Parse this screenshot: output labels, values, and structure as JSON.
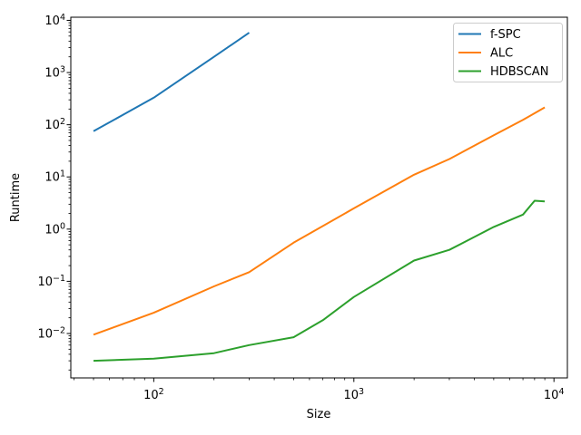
{
  "chart_data": {
    "type": "line",
    "title": "",
    "xlabel": "Size",
    "ylabel": "Runtime",
    "x_scale": "log",
    "y_scale": "log",
    "xlim": [
      38.5,
      11670
    ],
    "ylim": [
      0.00141,
      11480
    ],
    "grid": false,
    "x_major_ticks": [
      "10^2",
      "10^3",
      "10^4"
    ],
    "y_major_ticks": [
      "10^4",
      "10^3",
      "10^2",
      "10^1",
      "10^0",
      "10^-1",
      "10^-2"
    ],
    "legend_position": "upper right",
    "series": [
      {
        "name": "f-SPC",
        "color": "#1f77b4",
        "points": [
          [
            50,
            75
          ],
          [
            100,
            330
          ],
          [
            200,
            2000
          ],
          [
            300,
            5800
          ]
        ]
      },
      {
        "name": "ALC",
        "color": "#ff7f0e",
        "points": [
          [
            50,
            0.0095
          ],
          [
            100,
            0.025
          ],
          [
            200,
            0.08
          ],
          [
            300,
            0.15
          ],
          [
            500,
            0.55
          ],
          [
            1000,
            2.5
          ],
          [
            2000,
            11
          ],
          [
            3000,
            22
          ],
          [
            5000,
            63
          ],
          [
            7000,
            124
          ],
          [
            9000,
            215
          ]
        ]
      },
      {
        "name": "HDBSCAN",
        "color": "#2ca02c",
        "points": [
          [
            50,
            0.003
          ],
          [
            100,
            0.0033
          ],
          [
            200,
            0.0042
          ],
          [
            300,
            0.006
          ],
          [
            500,
            0.0085
          ],
          [
            700,
            0.018
          ],
          [
            1000,
            0.05
          ],
          [
            2000,
            0.25
          ],
          [
            3000,
            0.4
          ],
          [
            5000,
            1.1
          ],
          [
            7000,
            1.9
          ],
          [
            8000,
            3.5
          ],
          [
            9000,
            3.4
          ]
        ]
      }
    ]
  }
}
